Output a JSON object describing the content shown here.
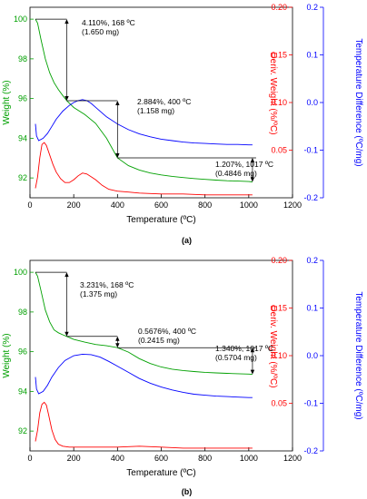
{
  "chart_data": [
    {
      "panel_label": "(a)",
      "type": "line",
      "xlabel": "Temperature (ºC)",
      "xlim": [
        0,
        1200
      ],
      "xticks": [
        0,
        200,
        400,
        600,
        800,
        1000,
        1200
      ],
      "axes": {
        "left": {
          "label": "Weight (%)",
          "color": "#00a000",
          "lim": [
            91,
            100.6
          ],
          "ticks": [
            92,
            94,
            96,
            98,
            100
          ]
        },
        "right_inner": {
          "label": "Deriv. Weight (%/ºC)",
          "color": "#ff0000",
          "lim": [
            0.0,
            0.2
          ],
          "ticks": [
            0.05,
            0.1,
            0.15,
            0.2
          ],
          "tick_labels": [
            "0.05",
            "0.10",
            "0.15",
            "0.20"
          ]
        },
        "right_outer": {
          "label": "Temperature Difference (ºC/mg)",
          "color": "#0000ff",
          "lim": [
            -0.2,
            0.2
          ],
          "ticks": [
            -0.2,
            -0.1,
            0.0,
            0.1,
            0.2
          ],
          "tick_labels": [
            "-0.2",
            "-0.1",
            "0.0",
            "0.1",
            "0.2"
          ]
        }
      },
      "series": [
        {
          "axis": "left",
          "color": "#00a000",
          "x": [
            25,
            35,
            50,
            70,
            90,
            110,
            130,
            150,
            168,
            200,
            250,
            300,
            350,
            400,
            450,
            500,
            550,
            600,
            650,
            700,
            750,
            800,
            850,
            900,
            950,
            1000,
            1017
          ],
          "y": [
            100,
            99.8,
            99.0,
            98.0,
            97.3,
            96.8,
            96.45,
            96.15,
            95.89,
            95.55,
            95.2,
            94.75,
            94.0,
            93.01,
            92.62,
            92.4,
            92.25,
            92.15,
            92.08,
            92.02,
            91.97,
            91.93,
            91.89,
            91.86,
            91.84,
            91.82,
            91.8
          ]
        },
        {
          "axis": "right_inner",
          "color": "#ff0000",
          "x": [
            25,
            35,
            45,
            55,
            65,
            75,
            90,
            105,
            120,
            140,
            160,
            180,
            200,
            220,
            240,
            260,
            280,
            300,
            330,
            360,
            400,
            450,
            500,
            600,
            700,
            800,
            900,
            1000,
            1017
          ],
          "y": [
            0.01,
            0.022,
            0.042,
            0.056,
            0.058,
            0.055,
            0.045,
            0.035,
            0.027,
            0.02,
            0.016,
            0.016,
            0.019,
            0.023,
            0.026,
            0.025,
            0.022,
            0.019,
            0.013,
            0.009,
            0.007,
            0.006,
            0.005,
            0.004,
            0.004,
            0.003,
            0.003,
            0.003,
            0.003
          ]
        },
        {
          "axis": "right_outer",
          "color": "#0000ff",
          "x": [
            25,
            30,
            40,
            60,
            80,
            100,
            120,
            150,
            180,
            200,
            220,
            240,
            260,
            280,
            300,
            350,
            400,
            450,
            500,
            550,
            600,
            650,
            700,
            750,
            800,
            850,
            900,
            950,
            1000,
            1017
          ],
          "y": [
            -0.045,
            -0.07,
            -0.08,
            -0.075,
            -0.065,
            -0.05,
            -0.035,
            -0.018,
            -0.006,
            0.0,
            0.004,
            0.006,
            0.004,
            -0.002,
            -0.01,
            -0.03,
            -0.045,
            -0.057,
            -0.066,
            -0.072,
            -0.077,
            -0.08,
            -0.083,
            -0.085,
            -0.086,
            -0.087,
            -0.088,
            -0.088,
            -0.089,
            -0.089
          ]
        }
      ],
      "annotations": [
        {
          "line1": "4.110%, 168 ºC",
          "line2": "(1.650 mg)"
        },
        {
          "line1": "2.884%, 400 ºC",
          "line2": "(1.158 mg)"
        },
        {
          "line1": "1.207%, 1017 ºC",
          "line2": "(0.4846 mg)"
        }
      ],
      "steps": [
        {
          "t": 168,
          "top": 100,
          "bottom": 95.89
        },
        {
          "t": 400,
          "top": 95.89,
          "bottom": 93.01
        },
        {
          "t": 1017,
          "top": 93.01,
          "bottom": 91.8
        }
      ]
    },
    {
      "panel_label": "(b)",
      "type": "line",
      "xlabel": "Temperature (ºC)",
      "xlim": [
        0,
        1200
      ],
      "xticks": [
        0,
        200,
        400,
        600,
        800,
        1000,
        1200
      ],
      "axes": {
        "left": {
          "label": "Weight (%)",
          "color": "#00a000",
          "lim": [
            91,
            100.6
          ],
          "ticks": [
            92,
            94,
            96,
            98,
            100
          ]
        },
        "right_inner": {
          "label": "Deriv. Weight (%/ºC)",
          "color": "#ff0000",
          "lim": [
            0.0,
            0.2
          ],
          "ticks": [
            0.05,
            0.1,
            0.15,
            0.2
          ],
          "tick_labels": [
            "0.05",
            "0.10",
            "0.15",
            "0.20"
          ]
        },
        "right_outer": {
          "label": "Temperature Difference (ºC/mg)",
          "color": "#0000ff",
          "lim": [
            -0.2,
            0.2
          ],
          "ticks": [
            -0.2,
            -0.1,
            0.0,
            0.1,
            0.2
          ],
          "tick_labels": [
            "-0.2",
            "-0.1",
            "0.0",
            "0.1",
            "0.2"
          ]
        }
      },
      "series": [
        {
          "axis": "left",
          "color": "#00a000",
          "x": [
            25,
            35,
            50,
            70,
            90,
            110,
            130,
            150,
            168,
            200,
            250,
            300,
            350,
            400,
            450,
            500,
            550,
            600,
            650,
            700,
            750,
            800,
            850,
            900,
            950,
            1000,
            1017
          ],
          "y": [
            100,
            99.8,
            99.1,
            98.1,
            97.5,
            97.1,
            96.95,
            96.85,
            96.77,
            96.62,
            96.48,
            96.36,
            96.3,
            96.2,
            95.98,
            95.65,
            95.4,
            95.23,
            95.12,
            95.05,
            95.0,
            94.96,
            94.93,
            94.91,
            94.89,
            94.87,
            94.86
          ]
        },
        {
          "axis": "right_inner",
          "color": "#ff0000",
          "x": [
            25,
            35,
            45,
            55,
            65,
            75,
            85,
            100,
            115,
            130,
            150,
            180,
            220,
            300,
            400,
            500,
            600,
            700,
            800,
            900,
            1000,
            1017
          ],
          "y": [
            0.01,
            0.022,
            0.04,
            0.049,
            0.051,
            0.048,
            0.038,
            0.022,
            0.012,
            0.007,
            0.005,
            0.004,
            0.004,
            0.004,
            0.004,
            0.005,
            0.004,
            0.003,
            0.003,
            0.003,
            0.003,
            0.003
          ]
        },
        {
          "axis": "right_outer",
          "color": "#0000ff",
          "x": [
            25,
            30,
            40,
            60,
            80,
            100,
            130,
            160,
            200,
            240,
            280,
            320,
            360,
            400,
            450,
            500,
            550,
            600,
            650,
            700,
            750,
            800,
            850,
            900,
            950,
            1000,
            1017
          ],
          "y": [
            -0.045,
            -0.07,
            -0.08,
            -0.075,
            -0.062,
            -0.045,
            -0.025,
            -0.01,
            0.0,
            0.003,
            0.002,
            -0.003,
            -0.012,
            -0.022,
            -0.035,
            -0.048,
            -0.058,
            -0.066,
            -0.072,
            -0.077,
            -0.081,
            -0.083,
            -0.085,
            -0.086,
            -0.087,
            -0.088,
            -0.088
          ]
        }
      ],
      "annotations": [
        {
          "line1": "3.231%, 168 ºC",
          "line2": "(1.375 mg)"
        },
        {
          "line1": "0.5676%, 400 ºC",
          "line2": "(0.2415 mg)"
        },
        {
          "line1": "1.340%, 1017 ºC",
          "line2": "(0.5704 mg)"
        }
      ],
      "steps": [
        {
          "t": 168,
          "top": 100,
          "bottom": 96.77
        },
        {
          "t": 400,
          "top": 96.77,
          "bottom": 96.2
        },
        {
          "t": 1017,
          "top": 96.2,
          "bottom": 94.86
        }
      ]
    }
  ]
}
